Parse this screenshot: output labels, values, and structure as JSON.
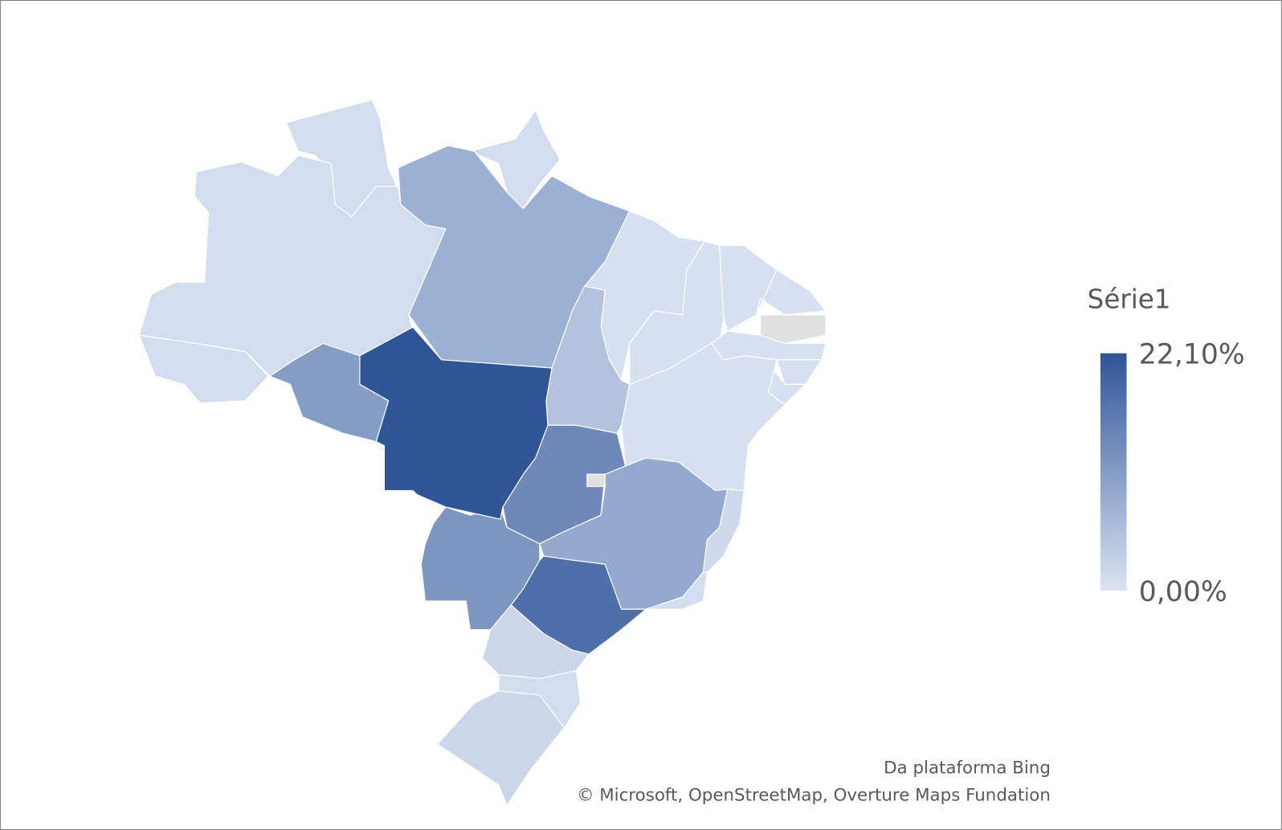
{
  "chart_data": {
    "type": "choropleth",
    "values": [
      1,
      1,
      1,
      1,
      8,
      0.5,
      0.5,
      0.5,
      0.5,
      null,
      0.5,
      0.5,
      0.5,
      0.5,
      5,
      14,
      null,
      9,
      1.5,
      1,
      18,
      12,
      22.1,
      11,
      2,
      1,
      2
    ],
    "colors": [
      "#dae3f3",
      "#2f5597"
    ],
    "null_color": "#e0e0e0",
    "clim": [
      0,
      22.1
    ],
    "cticks": [
      {
        "value": 22.1,
        "label": "22,10%"
      },
      {
        "value": 0,
        "label": "0,00%"
      }
    ],
    "legend_title": "Série1",
    "attribution": [
      "Da plataforma Bing",
      "© Microsoft, OpenStreetMap, Overture Maps Fundation"
    ]
  }
}
